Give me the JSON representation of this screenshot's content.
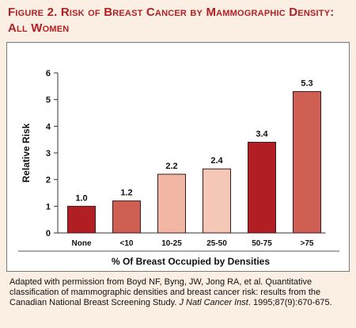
{
  "header": {
    "title_line1": "Figure 2. Risk of Breast Cancer by Mammographic Density:",
    "title_line2": "All Women"
  },
  "colors": {
    "title": "#b21f24",
    "background": "#fbeee2",
    "bar_dark": "#b11f24",
    "bar_mid": "#cf5f52",
    "bar_light": "#f1b7a4"
  },
  "chart_data": {
    "type": "bar",
    "title": "",
    "xlabel": "% Of Breast Occupied by Densities",
    "ylabel": "Relative Risk",
    "ylim": [
      0,
      6
    ],
    "yticks": [
      "0",
      "1",
      "2",
      "3",
      "4",
      "5",
      "6"
    ],
    "categories": [
      "None",
      "<10",
      "10-25",
      "25-50",
      "50-75",
      ">75"
    ],
    "values": [
      1.0,
      1.2,
      2.2,
      2.4,
      3.4,
      5.3
    ],
    "value_labels": [
      "1.0",
      "1.2",
      "2.2",
      "2.4",
      "3.4",
      "5.3"
    ],
    "bar_colors": [
      "#b11f24",
      "#cf5f52",
      "#f1b7a4",
      "#f4c7b6",
      "#b11f24",
      "#cf5f52"
    ],
    "grid": false,
    "legend": "none"
  },
  "caption": {
    "text_before": "Adapted with permission from Boyd NF, Byng, JW, Jong RA, et al. Quantitative classification of mammographic densities and breast cancer risk: results from the Canadian National Breast Screening Study. ",
    "journal": "J Natl Cancer Inst",
    "text_after": ". 1995;87(9):670-675."
  }
}
